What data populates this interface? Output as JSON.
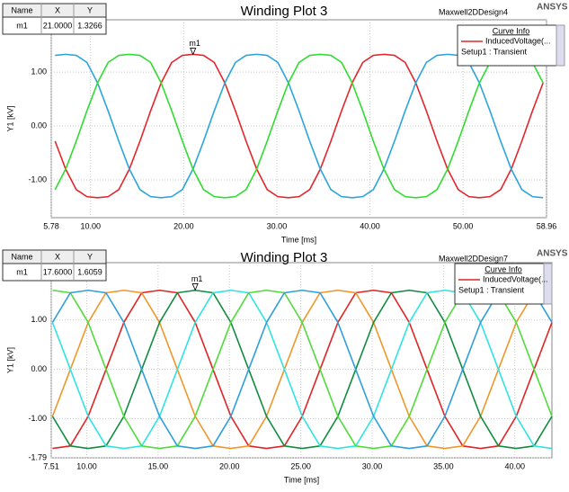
{
  "chart_data": [
    {
      "type": "line",
      "title": "Winding Plot 3",
      "design": "Maxwell2DDesign4",
      "brand": "ANSYS",
      "xlabel": "Time [ms]",
      "ylabel": "Y1 [kV]",
      "xlim": [
        5.78,
        58.96
      ],
      "ylim": [
        -1.7,
        1.97
      ],
      "xticks": [
        5.78,
        {
          "value": 10,
          "label": "10.00"
        },
        {
          "value": 20,
          "label": "20.00"
        },
        {
          "value": 30,
          "label": "30.00"
        },
        {
          "value": 40,
          "label": "40.00"
        },
        {
          "value": 50,
          "label": "50.00"
        },
        58.96
      ],
      "yticks": [
        {
          "value": 1,
          "label": "1.00"
        },
        {
          "value": 0,
          "label": "0.00"
        },
        {
          "value": -1,
          "label": "-1.00"
        }
      ],
      "grid": true,
      "legend": {
        "header": "Curve Info",
        "setup": "Setup1 : Transient"
      },
      "marker_table": {
        "header": [
          "Name",
          "X",
          "Y"
        ]
      },
      "marker": {
        "name": "m1",
        "x": 21,
        "y": 1.3266,
        "x_label": "21.0000",
        "y_label": "1.3266"
      },
      "x": [
        6.19,
        7.33,
        8.47,
        9.61,
        10.75,
        11.89,
        13.03,
        14.17,
        15.31,
        16.45,
        17.58,
        18.72,
        19.86,
        21.0,
        22.14,
        23.28,
        24.42,
        25.56,
        26.7,
        27.84,
        28.97,
        30.11,
        31.25,
        32.39,
        33.53,
        34.67,
        35.81,
        36.95,
        38.09,
        39.23,
        40.36,
        41.5,
        42.64,
        43.78,
        44.92,
        46.06,
        47.2,
        48.34,
        49.48,
        50.62,
        51.75,
        52.89,
        54.03,
        55.17,
        56.31,
        57.45,
        58.59
      ],
      "series": [
        {
          "name": "InducedVoltage(...",
          "color": "#e3262b",
          "values": [
            -0.28,
            -0.8,
            -1.18,
            -1.31,
            -1.33,
            -1.31,
            -1.18,
            -0.8,
            -0.28,
            0.28,
            0.8,
            1.18,
            1.31,
            1.33,
            1.31,
            1.18,
            0.8,
            0.28,
            -0.28,
            -0.8,
            -1.18,
            -1.31,
            -1.33,
            -1.31,
            -1.18,
            -0.8,
            -0.28,
            0.28,
            0.8,
            1.18,
            1.31,
            1.33,
            1.31,
            1.18,
            0.8,
            0.28,
            -0.28,
            -0.8,
            -1.18,
            -1.31,
            -1.33,
            -1.31,
            -1.18,
            -0.8,
            -0.28,
            0.28,
            0.8
          ]
        },
        {
          "color": "#2ba4de",
          "values": [
            1.31,
            1.33,
            1.31,
            1.18,
            0.8,
            0.28,
            -0.28,
            -0.8,
            -1.18,
            -1.31,
            -1.33,
            -1.31,
            -1.18,
            -0.8,
            -0.28,
            0.28,
            0.8,
            1.18,
            1.31,
            1.33,
            1.31,
            1.18,
            0.8,
            0.28,
            -0.28,
            -0.8,
            -1.18,
            -1.31,
            -1.33,
            -1.31,
            -1.18,
            -0.8,
            -0.28,
            0.28,
            0.8,
            1.18,
            1.31,
            1.33,
            1.31,
            1.18,
            0.8,
            0.28,
            -0.28,
            -0.8,
            -1.18,
            -1.31,
            -1.33
          ]
        },
        {
          "color": "#2fdc2f",
          "values": [
            -1.18,
            -0.8,
            -0.28,
            0.28,
            0.8,
            1.18,
            1.31,
            1.33,
            1.31,
            1.18,
            0.8,
            0.28,
            -0.28,
            -0.8,
            -1.18,
            -1.31,
            -1.33,
            -1.31,
            -1.18,
            -0.8,
            -0.28,
            0.28,
            0.8,
            1.18,
            1.31,
            1.33,
            1.31,
            1.18,
            0.8,
            0.28,
            -0.28,
            -0.8,
            -1.18,
            -1.31,
            -1.33,
            -1.31,
            -1.18,
            -0.8,
            -0.28,
            0.28,
            0.8,
            1.18,
            1.31,
            1.33,
            1.31,
            1.18,
            0.8
          ]
        }
      ]
    },
    {
      "type": "line",
      "title": "Winding Plot 3",
      "design": "Maxwell2DDesign7",
      "brand": "ANSYS",
      "xlabel": "Time [ms]",
      "ylabel": "Y1 [kV]",
      "xlim": [
        7.51,
        42.6
      ],
      "ylim": [
        -1.79,
        2.16
      ],
      "xticks": [
        7.51,
        {
          "value": 10,
          "label": "10.00"
        },
        {
          "value": 15,
          "label": "15.00"
        },
        {
          "value": 20,
          "label": "20.00"
        },
        {
          "value": 25,
          "label": "25.00"
        },
        {
          "value": 30,
          "label": "30.00"
        },
        {
          "value": 35,
          "label": "35.00"
        },
        {
          "value": 40,
          "label": "40.00"
        }
      ],
      "yticks": [
        {
          "value": 1,
          "label": "1.00"
        },
        {
          "value": 0,
          "label": "0.00"
        },
        {
          "value": -1,
          "label": "-1.00"
        },
        -1.79
      ],
      "grid": true,
      "legend": {
        "header": "Curve Info",
        "setup": "Setup1 : Transient"
      },
      "marker_table": {
        "header": [
          "Name",
          "X",
          "Y"
        ]
      },
      "marker": {
        "name": "m1",
        "x": 17.6,
        "y": 1.6059,
        "x_label": "17.6000",
        "y_label": "1.6059"
      },
      "x": [
        7.6,
        8.85,
        10.1,
        11.35,
        12.6,
        13.85,
        15.1,
        16.35,
        17.6,
        18.85,
        20.1,
        21.35,
        22.6,
        23.85,
        25.1,
        26.35,
        27.6,
        28.85,
        30.1,
        31.35,
        32.6,
        33.85,
        35.1,
        36.35,
        37.6,
        38.85,
        40.1,
        41.35,
        42.6
      ],
      "series": [
        {
          "name": "InducedVoltage(...",
          "color": "#e02424",
          "values": [
            -1.6,
            -1.55,
            -0.95,
            0,
            0.95,
            1.55,
            1.6,
            1.55,
            0.95,
            0,
            -0.95,
            -1.55,
            -1.6,
            -1.55,
            -0.95,
            0,
            0.95,
            1.55,
            1.6,
            1.55,
            0.95,
            0,
            -0.95,
            -1.55,
            -1.6,
            -1.55,
            -0.95,
            0,
            0.95
          ]
        },
        {
          "color": "#f0962a",
          "values": [
            -0.95,
            0,
            0.95,
            1.55,
            1.6,
            1.55,
            0.95,
            0,
            -0.95,
            -1.55,
            -1.6,
            -1.55,
            -0.95,
            0,
            0.95,
            1.55,
            1.6,
            1.55,
            0.95,
            0,
            -0.95,
            -1.55,
            -1.6,
            -1.55,
            -0.95,
            0,
            0.95,
            1.55,
            1.6
          ]
        },
        {
          "color": "#118c3e",
          "values": [
            -0.95,
            -1.55,
            -1.6,
            -1.55,
            -0.95,
            0,
            0.95,
            1.55,
            1.6,
            1.55,
            0.95,
            0,
            -0.95,
            -1.55,
            -1.6,
            -1.55,
            -0.95,
            0,
            0.95,
            1.55,
            1.6,
            1.55,
            0.95,
            0,
            -0.95,
            -1.55,
            -1.6,
            -1.55,
            -0.95
          ]
        },
        {
          "color": "#2fe3e3",
          "values": [
            0.95,
            0,
            -0.95,
            -1.55,
            -1.6,
            -1.55,
            -0.95,
            0,
            0.95,
            1.55,
            1.6,
            1.55,
            0.95,
            0,
            -0.95,
            -1.55,
            -1.6,
            -1.55,
            -0.95,
            0,
            0.95,
            1.55,
            1.6,
            1.55,
            0.95,
            0,
            -0.95,
            -1.55,
            -1.6
          ]
        },
        {
          "color": "#4fdc3a",
          "values": [
            1.6,
            1.55,
            0.95,
            0,
            -0.95,
            -1.55,
            -1.6,
            -1.55,
            -0.95,
            0,
            0.95,
            1.55,
            1.6,
            1.55,
            0.95,
            0,
            -0.95,
            -1.55,
            -1.6,
            -1.55,
            -0.95,
            0,
            0.95,
            1.55,
            1.6,
            1.55,
            0.95,
            0,
            -0.95
          ]
        },
        {
          "color": "#2e9fdc",
          "values": [
            0.95,
            1.55,
            1.6,
            1.55,
            0.95,
            0,
            -0.95,
            -1.55,
            -1.6,
            -1.55,
            -0.95,
            0,
            0.95,
            1.55,
            1.6,
            1.55,
            0.95,
            0,
            -0.95,
            -1.55,
            -1.6,
            -1.55,
            -0.95,
            0,
            0.95,
            1.55,
            1.6,
            1.55,
            0.95
          ]
        }
      ]
    }
  ]
}
